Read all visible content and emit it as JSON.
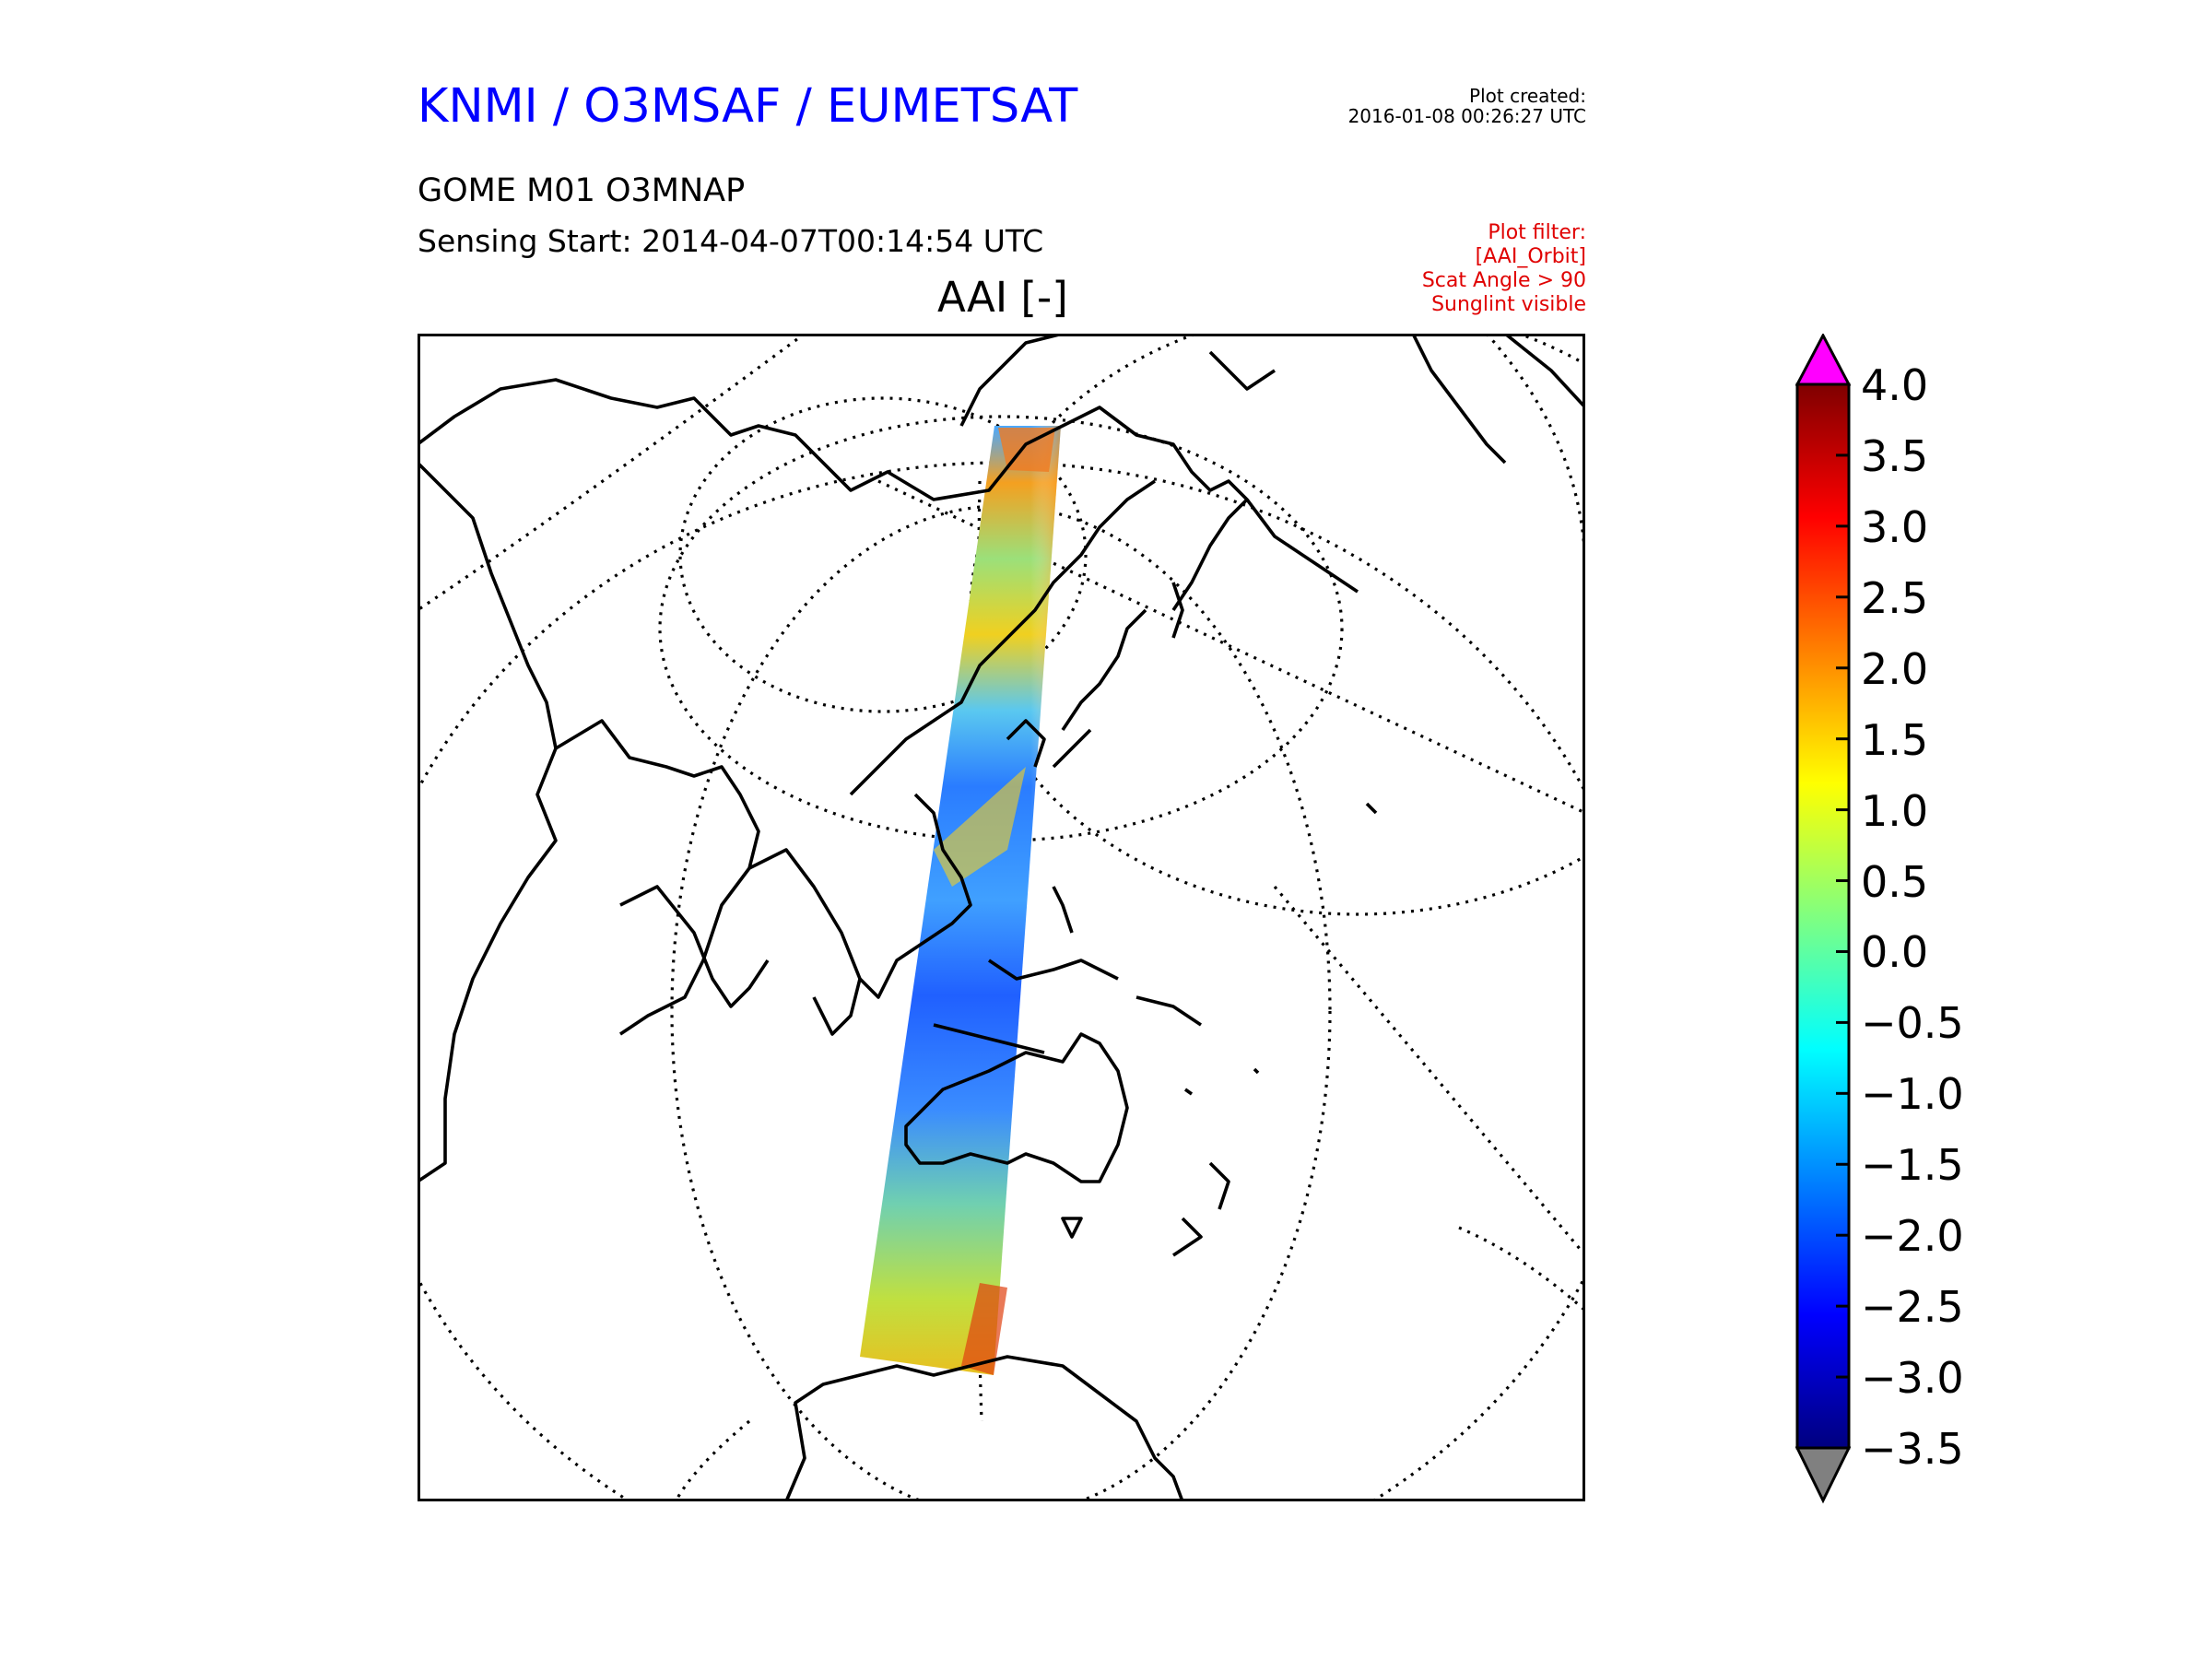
{
  "header": {
    "title": "KNMI / O3MSAF / EUMETSAT",
    "created_label": "Plot created:",
    "created_time": "2016-01-08 00:26:27 UTC"
  },
  "product": {
    "name": "GOME M01 O3MNAP",
    "sensing_start": "Sensing Start: 2014-04-07T00:14:54 UTC"
  },
  "filter": {
    "lines": [
      "Plot filter:",
      "[AAI_Orbit]",
      "Scat Angle > 90",
      "Sunglint visible"
    ]
  },
  "map": {
    "title": "AAI [-]",
    "projection_view": "orthographic-like, centred on East Asia / Western Pacific",
    "regions_visible": [
      "Asia",
      "Siberia",
      "Japan",
      "Indonesia",
      "Australia",
      "New Zealand",
      "Antarctica",
      "Africa",
      "Arctic"
    ],
    "swath_description": "single GOME-2 orbit swath from Arctic to Antarctica across East Asia and Australia"
  },
  "colorbar": {
    "ticks": [
      "4.0",
      "3.5",
      "3.0",
      "2.5",
      "2.0",
      "1.5",
      "1.0",
      "0.5",
      "0.0",
      "−0.5",
      "−1.0",
      "−1.5",
      "−2.0",
      "−2.5",
      "−3.0",
      "−3.5"
    ],
    "tick_values": [
      4.0,
      3.5,
      3.0,
      2.5,
      2.0,
      1.5,
      1.0,
      0.5,
      0.0,
      -0.5,
      -1.0,
      -1.5,
      -2.0,
      -2.5,
      -3.0,
      -3.5
    ],
    "range": [
      -3.5,
      4.0
    ],
    "colormap": "jet",
    "over_color": "#ff00ff",
    "under_color": "#808080",
    "colormap_stops": [
      "#00007f",
      "#0000ff",
      "#0080ff",
      "#00ffff",
      "#80ff80",
      "#ffff00",
      "#ff8000",
      "#ff0000",
      "#7f0000"
    ]
  },
  "colors": {
    "title_blue": "#0000ff",
    "filter_red": "#e00000"
  }
}
